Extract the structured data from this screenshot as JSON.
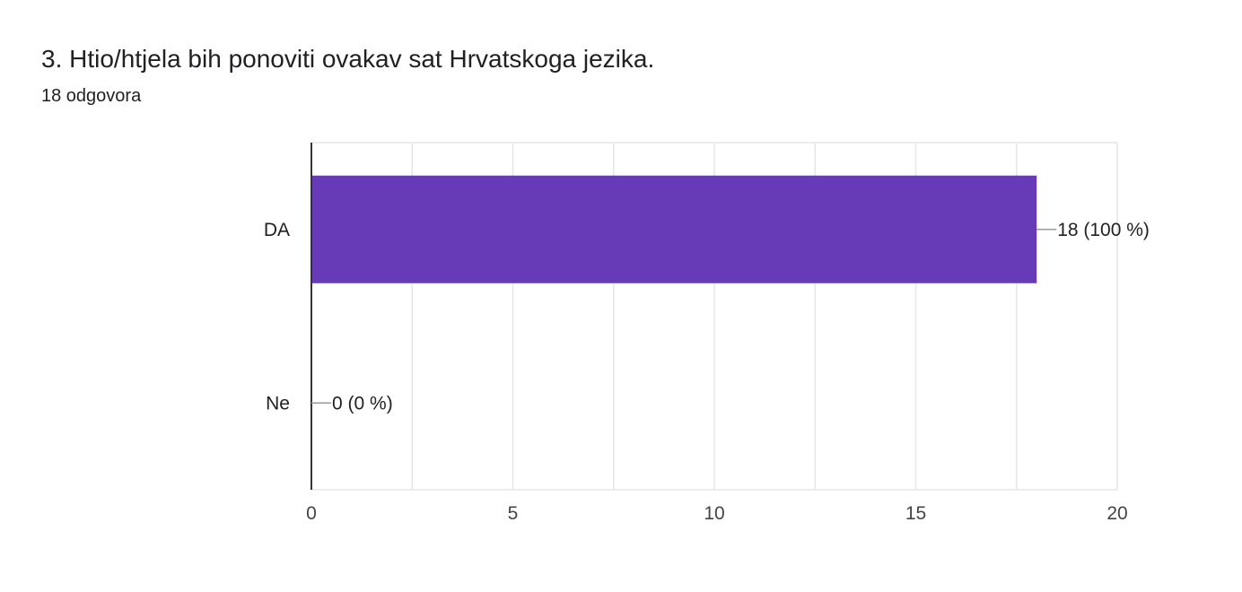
{
  "question": {
    "title": "3. Htio/htjela bih ponoviti ovakav sat Hrvatskoga jezika.",
    "response_count": "18 odgovora"
  },
  "colors": {
    "bar": "#673ab7",
    "grid": "#e6e6e6",
    "axis": "#333333",
    "leader": "#999999",
    "text": "#202124",
    "tick_text": "#444444"
  },
  "chart_data": {
    "type": "bar",
    "orientation": "horizontal",
    "categories": [
      "DA",
      "Ne"
    ],
    "values": [
      18,
      0
    ],
    "data_labels": [
      "18 (100 %)",
      "0 (0 %)"
    ],
    "xlim": [
      0,
      20
    ],
    "xticks": [
      0,
      5,
      10,
      15,
      20
    ],
    "xtick_labels": [
      "0",
      "5",
      "10",
      "15",
      "20"
    ],
    "grid": true,
    "legend": "none"
  }
}
